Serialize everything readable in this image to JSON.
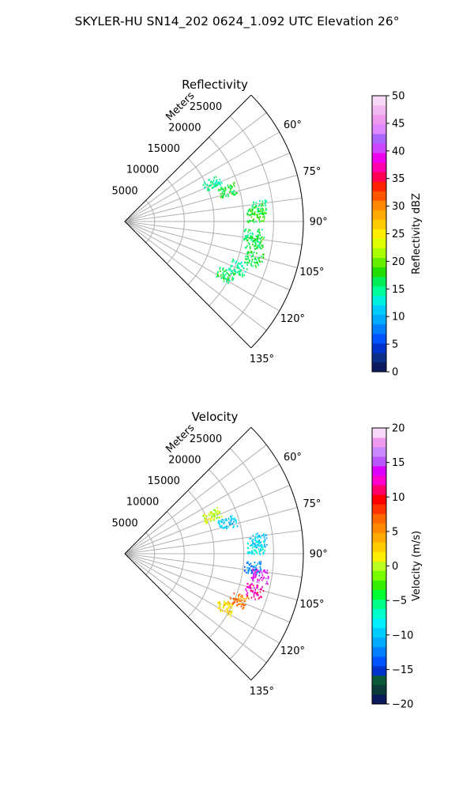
{
  "figure_title": "SKYLER-HU  SN14_202  0624_1.092 UTC Elevation 26°",
  "colors": {
    "grid": "#b0b0b0",
    "frame": "#000000",
    "reflectivity_cmap": [
      "#0b1a5c",
      "#0a2e8a",
      "#0033cc",
      "#0055ff",
      "#0080ff",
      "#00aaff",
      "#00ccff",
      "#00eedd",
      "#00ff99",
      "#00ee55",
      "#22dd00",
      "#66ee00",
      "#aaff00",
      "#ddff00",
      "#ffee00",
      "#ffcc00",
      "#ffaa00",
      "#ff8800",
      "#ff5500",
      "#ff2200",
      "#ff0055",
      "#ff00aa",
      "#ee00ee",
      "#cc44ff",
      "#aa66ff",
      "#dd88ff",
      "#ee99ee",
      "#f0b8f0",
      "#f8d8f8"
    ],
    "velocity_cmap": [
      "#0b1a5c",
      "#0b3a3a",
      "#0b5a3a",
      "#0033cc",
      "#0055ff",
      "#0080ff",
      "#00aaff",
      "#00ccff",
      "#00eeff",
      "#00ffcc",
      "#00ff88",
      "#00ff33",
      "#33ee00",
      "#77ff00",
      "#bbff22",
      "#ffee00",
      "#ffcc00",
      "#ffaa00",
      "#ff8800",
      "#ff6600",
      "#ff3300",
      "#ff0000",
      "#ff0066",
      "#ff00cc",
      "#dd00ff",
      "#bb55ff",
      "#cc88ff",
      "#ee99ee",
      "#f8d8f8"
    ]
  },
  "chart_data": [
    {
      "type": "polar-sector",
      "title": "Reflectivity",
      "r_label": "Meters",
      "r_ticks": [
        5000,
        10000,
        15000,
        20000,
        25000
      ],
      "r_max": 30000,
      "theta_range_deg": [
        45,
        135
      ],
      "theta_ticks": [
        "60°",
        "75°",
        "90°",
        "105°",
        "120°",
        "135°"
      ],
      "colorbar": {
        "label": "Reflectivity dBZ",
        "range": [
          0,
          50
        ],
        "ticks": [
          "0",
          "5",
          "10",
          "15",
          "20",
          "25",
          "30",
          "35",
          "40",
          "45",
          "50"
        ]
      },
      "echo_clusters": [
        {
          "azimuth_deg": 84,
          "range_m": 22500,
          "value": 16
        },
        {
          "azimuth_deg": 87,
          "range_m": 22000,
          "value": 18
        },
        {
          "azimuth_deg": 96,
          "range_m": 21500,
          "value": 16
        },
        {
          "azimuth_deg": 99,
          "range_m": 22000,
          "value": 17
        },
        {
          "azimuth_deg": 106,
          "range_m": 22500,
          "value": 17
        },
        {
          "azimuth_deg": 112,
          "range_m": 20500,
          "value": 15
        },
        {
          "azimuth_deg": 118,
          "range_m": 19000,
          "value": 16
        },
        {
          "azimuth_deg": 66,
          "range_m": 16000,
          "value": 15
        },
        {
          "azimuth_deg": 73,
          "range_m": 18000,
          "value": 17
        }
      ]
    },
    {
      "type": "polar-sector",
      "title": "Velocity",
      "r_label": "Meters",
      "r_ticks": [
        5000,
        10000,
        15000,
        20000,
        25000
      ],
      "r_max": 30000,
      "theta_range_deg": [
        45,
        135
      ],
      "theta_ticks": [
        "60°",
        "75°",
        "90°",
        "105°",
        "120°",
        "135°"
      ],
      "colorbar": {
        "label": "Velocity (m/s)",
        "range": [
          -20,
          20
        ],
        "ticks": [
          "−20",
          "−15",
          "−10",
          "−5",
          "0",
          "5",
          "10",
          "15",
          "20"
        ]
      },
      "echo_clusters": [
        {
          "azimuth_deg": 84,
          "range_m": 22500,
          "value": -10
        },
        {
          "azimuth_deg": 87,
          "range_m": 22000,
          "value": -8
        },
        {
          "azimuth_deg": 96,
          "range_m": 21500,
          "value": -12
        },
        {
          "azimuth_deg": 99,
          "range_m": 23000,
          "value": 14
        },
        {
          "azimuth_deg": 106,
          "range_m": 22500,
          "value": 12
        },
        {
          "azimuth_deg": 112,
          "range_m": 20500,
          "value": 6
        },
        {
          "azimuth_deg": 118,
          "range_m": 19000,
          "value": 2
        },
        {
          "azimuth_deg": 66,
          "range_m": 16000,
          "value": 0
        },
        {
          "azimuth_deg": 73,
          "range_m": 18000,
          "value": -10
        }
      ]
    }
  ]
}
